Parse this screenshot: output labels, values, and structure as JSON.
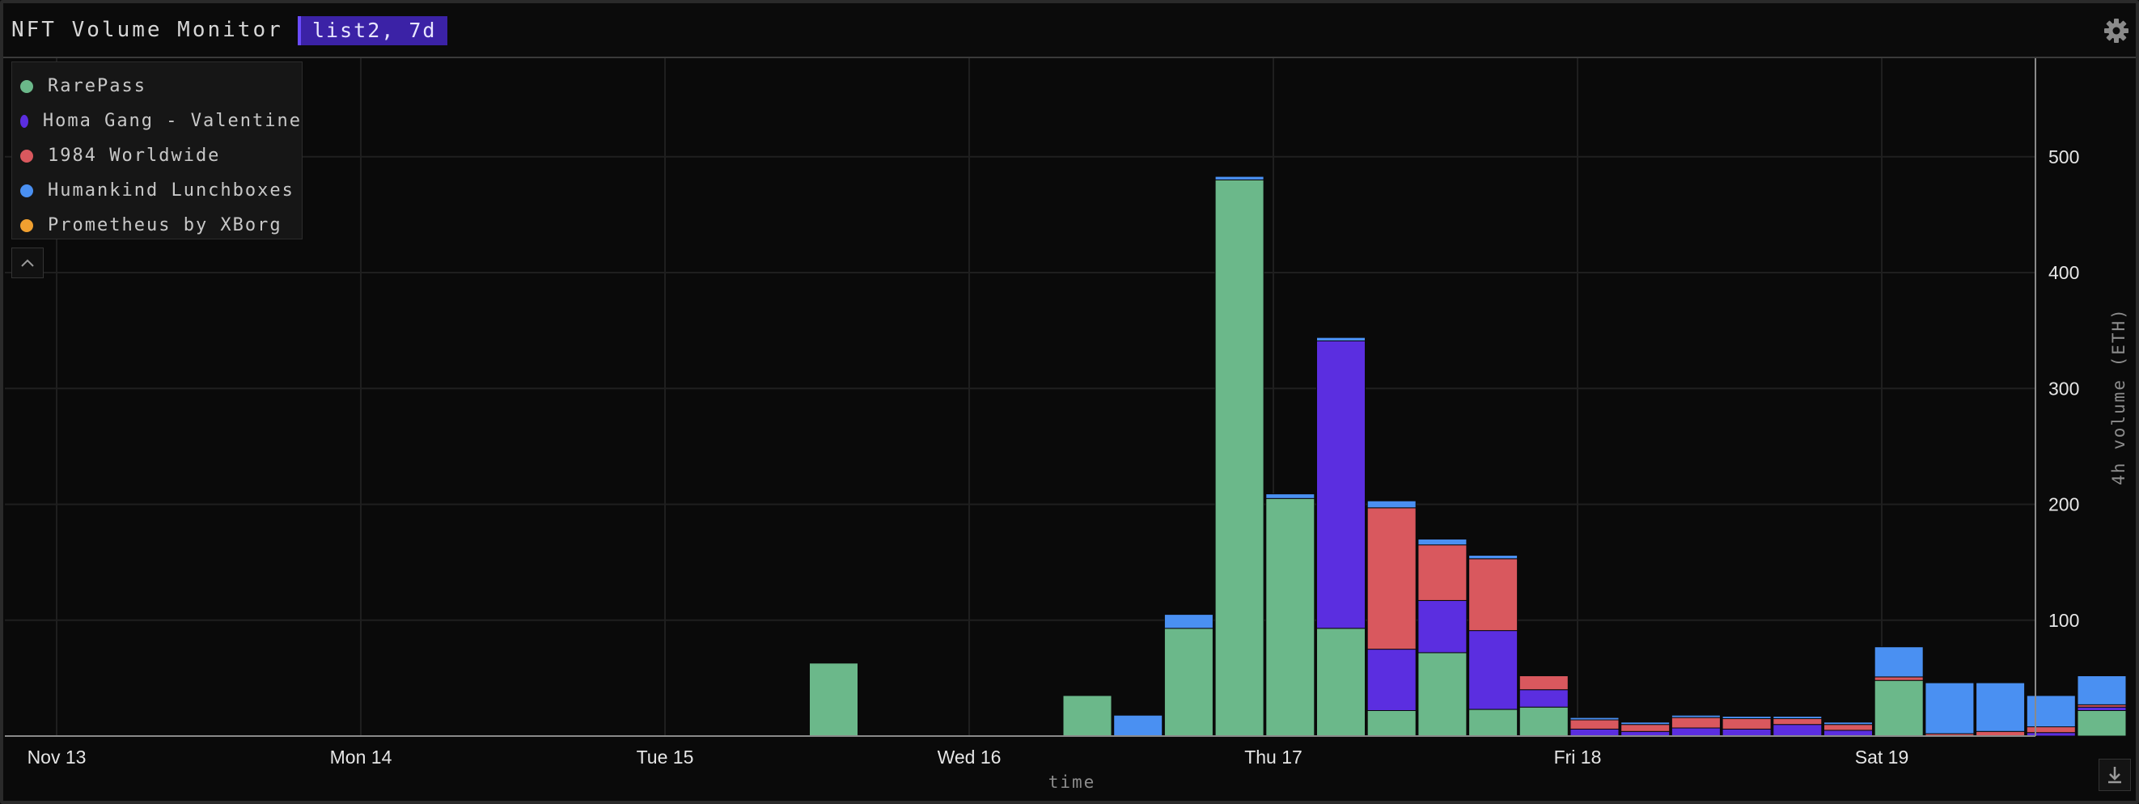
{
  "header": {
    "title": "NFT Volume Monitor",
    "query": "list2, 7d"
  },
  "icons": {
    "settings": "gear-icon",
    "collapse": "chevron-up-icon",
    "download": "download-icon"
  },
  "chart_data": {
    "type": "bar",
    "stacked": true,
    "ylabel": "4h volume (ETH)",
    "xlabel": "time",
    "ylim": [
      0,
      585
    ],
    "yticks": [
      100,
      200,
      300,
      400,
      500
    ],
    "xtick_labels": [
      "Nov 13",
      "Mon 14",
      "Tue 15",
      "Wed 16",
      "Thu 17",
      "Fri 18",
      "Sat 19"
    ],
    "grid": true,
    "legend_position": "top-left",
    "series": [
      {
        "name": "RarePass",
        "color": "#6bb88a",
        "values": [
          0,
          0,
          0,
          0,
          0,
          0,
          0,
          0,
          0,
          0,
          0,
          0,
          0,
          0,
          0,
          63,
          0,
          0,
          0,
          0,
          35,
          0,
          93,
          480,
          205,
          93,
          22,
          72,
          23,
          25,
          0,
          0,
          0,
          0,
          0,
          0,
          48,
          0,
          0,
          0,
          22
        ]
      },
      {
        "name": "Homa Gang - Valentine",
        "color": "#5b2ee0",
        "values": [
          0,
          0,
          0,
          0,
          0,
          0,
          0,
          0,
          0,
          0,
          0,
          0,
          0,
          0,
          0,
          0,
          0,
          0,
          0,
          0,
          0,
          0,
          0,
          0,
          0,
          248,
          53,
          45,
          68,
          15,
          6,
          4,
          7,
          6,
          10,
          5,
          0,
          0,
          0,
          3,
          3
        ]
      },
      {
        "name": "1984 Worldwide",
        "color": "#d9585e",
        "values": [
          0,
          0,
          0,
          0,
          0,
          0,
          0,
          0,
          0,
          0,
          0,
          0,
          0,
          0,
          0,
          0,
          0,
          0,
          0,
          0,
          0,
          0,
          0,
          0,
          0,
          0,
          122,
          48,
          62,
          12,
          8,
          6,
          9,
          9,
          5,
          5,
          3,
          2,
          4,
          5,
          2
        ]
      },
      {
        "name": "Humankind Lunchboxes",
        "color": "#4a90f2",
        "values": [
          0,
          0,
          0,
          0,
          0,
          0,
          0,
          0,
          0,
          0,
          0,
          0,
          0,
          0,
          0,
          0,
          0,
          0,
          0,
          0,
          0,
          18,
          12,
          3,
          4,
          3,
          6,
          5,
          3,
          0,
          2,
          2,
          2,
          2,
          2,
          2,
          26,
          44,
          42,
          27,
          25
        ]
      },
      {
        "name": "Prometheus by XBorg",
        "color": "#f0a030",
        "values": [
          0,
          0,
          1,
          0,
          0,
          0,
          0,
          0,
          0,
          0,
          0,
          0,
          0,
          0,
          0,
          0,
          0,
          0,
          0,
          0,
          0,
          0,
          0,
          0,
          0,
          0,
          0,
          0,
          0,
          0,
          0,
          0,
          0,
          0,
          0,
          0,
          0,
          0,
          0,
          0,
          0
        ]
      }
    ]
  }
}
